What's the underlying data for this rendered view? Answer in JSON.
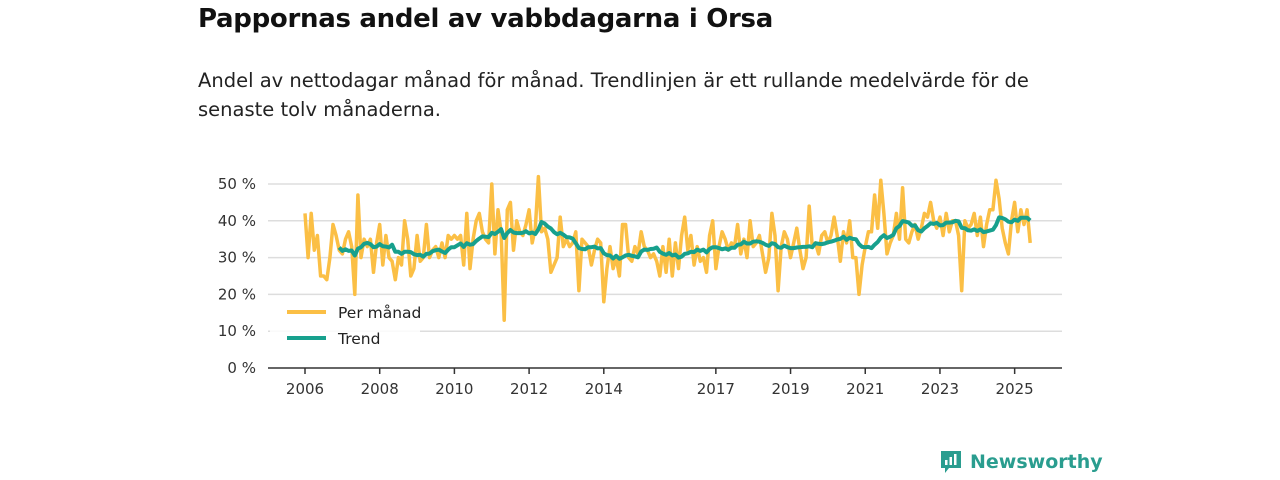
{
  "header": {
    "title": "Pappornas andel av vabbdagarna i Orsa",
    "subtitle": "Andel av nettodagar månad för månad. Trendlinjen är ett rullande medelvärde för de senaste tolv månaderna."
  },
  "brand": {
    "name": "Newsworthy",
    "icon": "newsworthy-logo-icon"
  },
  "colors": {
    "monthly": "#fbbf45",
    "trend": "#17a08d",
    "grid": "#dddddd"
  },
  "chart_data": {
    "type": "line",
    "title": "Pappornas andel av vabbdagarna i Orsa",
    "xlabel": "",
    "ylabel": "",
    "ylim": [
      0,
      50
    ],
    "y_ticks": [
      "0 %",
      "10 %",
      "20 %",
      "30 %",
      "40 %",
      "50 %"
    ],
    "y_tick_values": [
      0,
      10,
      20,
      30,
      40,
      50
    ],
    "x_ticks": [
      "2006",
      "2008",
      "2010",
      "2012",
      "2014",
      "2017",
      "2019",
      "2021",
      "2023",
      "2025"
    ],
    "x_start": "2006-01",
    "grid": true,
    "legend_position": "bottom-left",
    "series": [
      {
        "name": "Per månad",
        "trend_window": 0,
        "values": [
          42,
          30,
          42,
          32,
          36,
          25,
          25,
          24,
          30,
          39,
          36,
          32,
          31,
          35,
          37,
          33,
          20,
          47,
          30,
          35,
          33,
          35,
          26,
          34,
          39,
          28,
          36,
          30,
          29,
          24,
          30,
          28,
          40,
          35,
          25,
          27,
          36,
          29,
          30,
          39,
          30,
          32,
          33,
          30,
          34,
          30,
          36,
          35,
          36,
          35,
          36,
          28,
          42,
          27,
          35,
          40,
          42,
          37,
          35,
          34,
          50,
          31,
          43,
          37,
          13,
          43,
          45,
          32,
          40,
          37,
          36,
          39,
          43,
          34,
          38,
          52,
          37,
          38,
          35,
          26,
          28,
          30,
          41,
          33,
          35,
          33,
          34,
          37,
          21,
          35,
          34,
          33,
          28,
          32,
          35,
          34,
          18,
          27,
          33,
          27,
          30,
          25,
          39,
          39,
          30,
          29,
          33,
          31,
          37,
          33,
          32,
          30,
          31,
          29,
          25,
          33,
          26,
          35,
          25,
          34,
          27,
          36,
          41,
          32,
          36,
          28,
          33,
          29,
          30,
          26,
          36,
          40,
          27,
          33,
          37,
          35,
          32,
          34,
          33,
          39,
          31,
          35,
          30,
          40,
          33,
          34,
          36,
          31,
          26,
          30,
          42,
          36,
          21,
          33,
          37,
          35,
          30,
          34,
          38,
          32,
          27,
          30,
          44,
          33,
          34,
          31,
          36,
          37,
          34,
          36,
          41,
          36,
          29,
          37,
          34,
          40,
          30,
          30,
          20,
          28,
          33,
          37,
          37,
          47,
          38,
          51,
          42,
          31,
          34,
          36,
          42,
          35,
          49,
          35,
          34,
          37,
          39,
          35,
          38,
          42,
          41,
          45,
          40,
          38,
          41,
          36,
          42,
          37,
          40,
          40,
          36,
          21,
          40,
          38,
          39,
          42,
          36,
          41,
          33,
          39,
          43,
          43,
          51,
          46,
          38,
          34,
          31,
          40,
          45,
          37,
          43,
          39,
          43,
          34
        ]
      },
      {
        "name": "Trend",
        "trend_window": 12
      }
    ]
  }
}
